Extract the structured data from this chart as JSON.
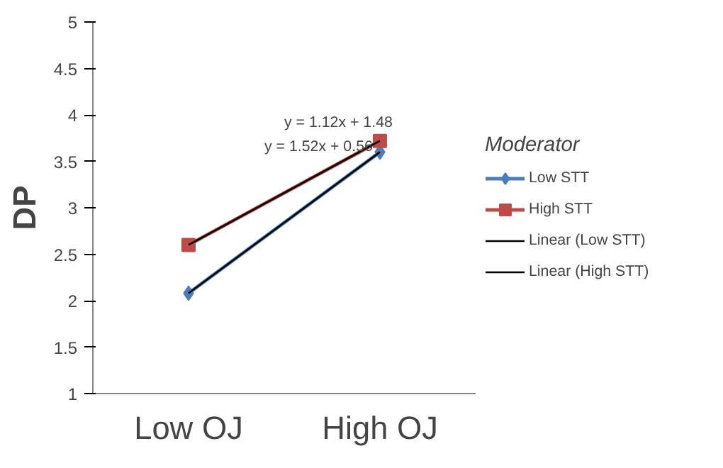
{
  "chart_data": {
    "type": "line",
    "ylabel": "DP",
    "categories": [
      "Low OJ",
      "High OJ"
    ],
    "ylim": [
      1,
      5
    ],
    "yticks": [
      1,
      1.5,
      2,
      2.5,
      3,
      3.5,
      4,
      4.5,
      5
    ],
    "grid": false,
    "legend": "right",
    "legend_title": "Moderator",
    "series": [
      {
        "name": "Low STT",
        "color": "#4a7ebb",
        "values": [
          2.08,
          3.6
        ],
        "marker": "diamond"
      },
      {
        "name": "High STT",
        "color": "#be4b48",
        "values": [
          2.6,
          3.72
        ],
        "marker": "square"
      },
      {
        "name": "Linear (Low STT)",
        "color": "#000000",
        "values": [
          2.08,
          3.6
        ],
        "marker": "none"
      },
      {
        "name": "Linear (High STT)",
        "color": "#000000",
        "values": [
          2.6,
          3.72
        ],
        "marker": "none"
      }
    ],
    "annotations": [
      "y = 1.12x + 1.48",
      "y = 1.52x + 0.56"
    ]
  }
}
